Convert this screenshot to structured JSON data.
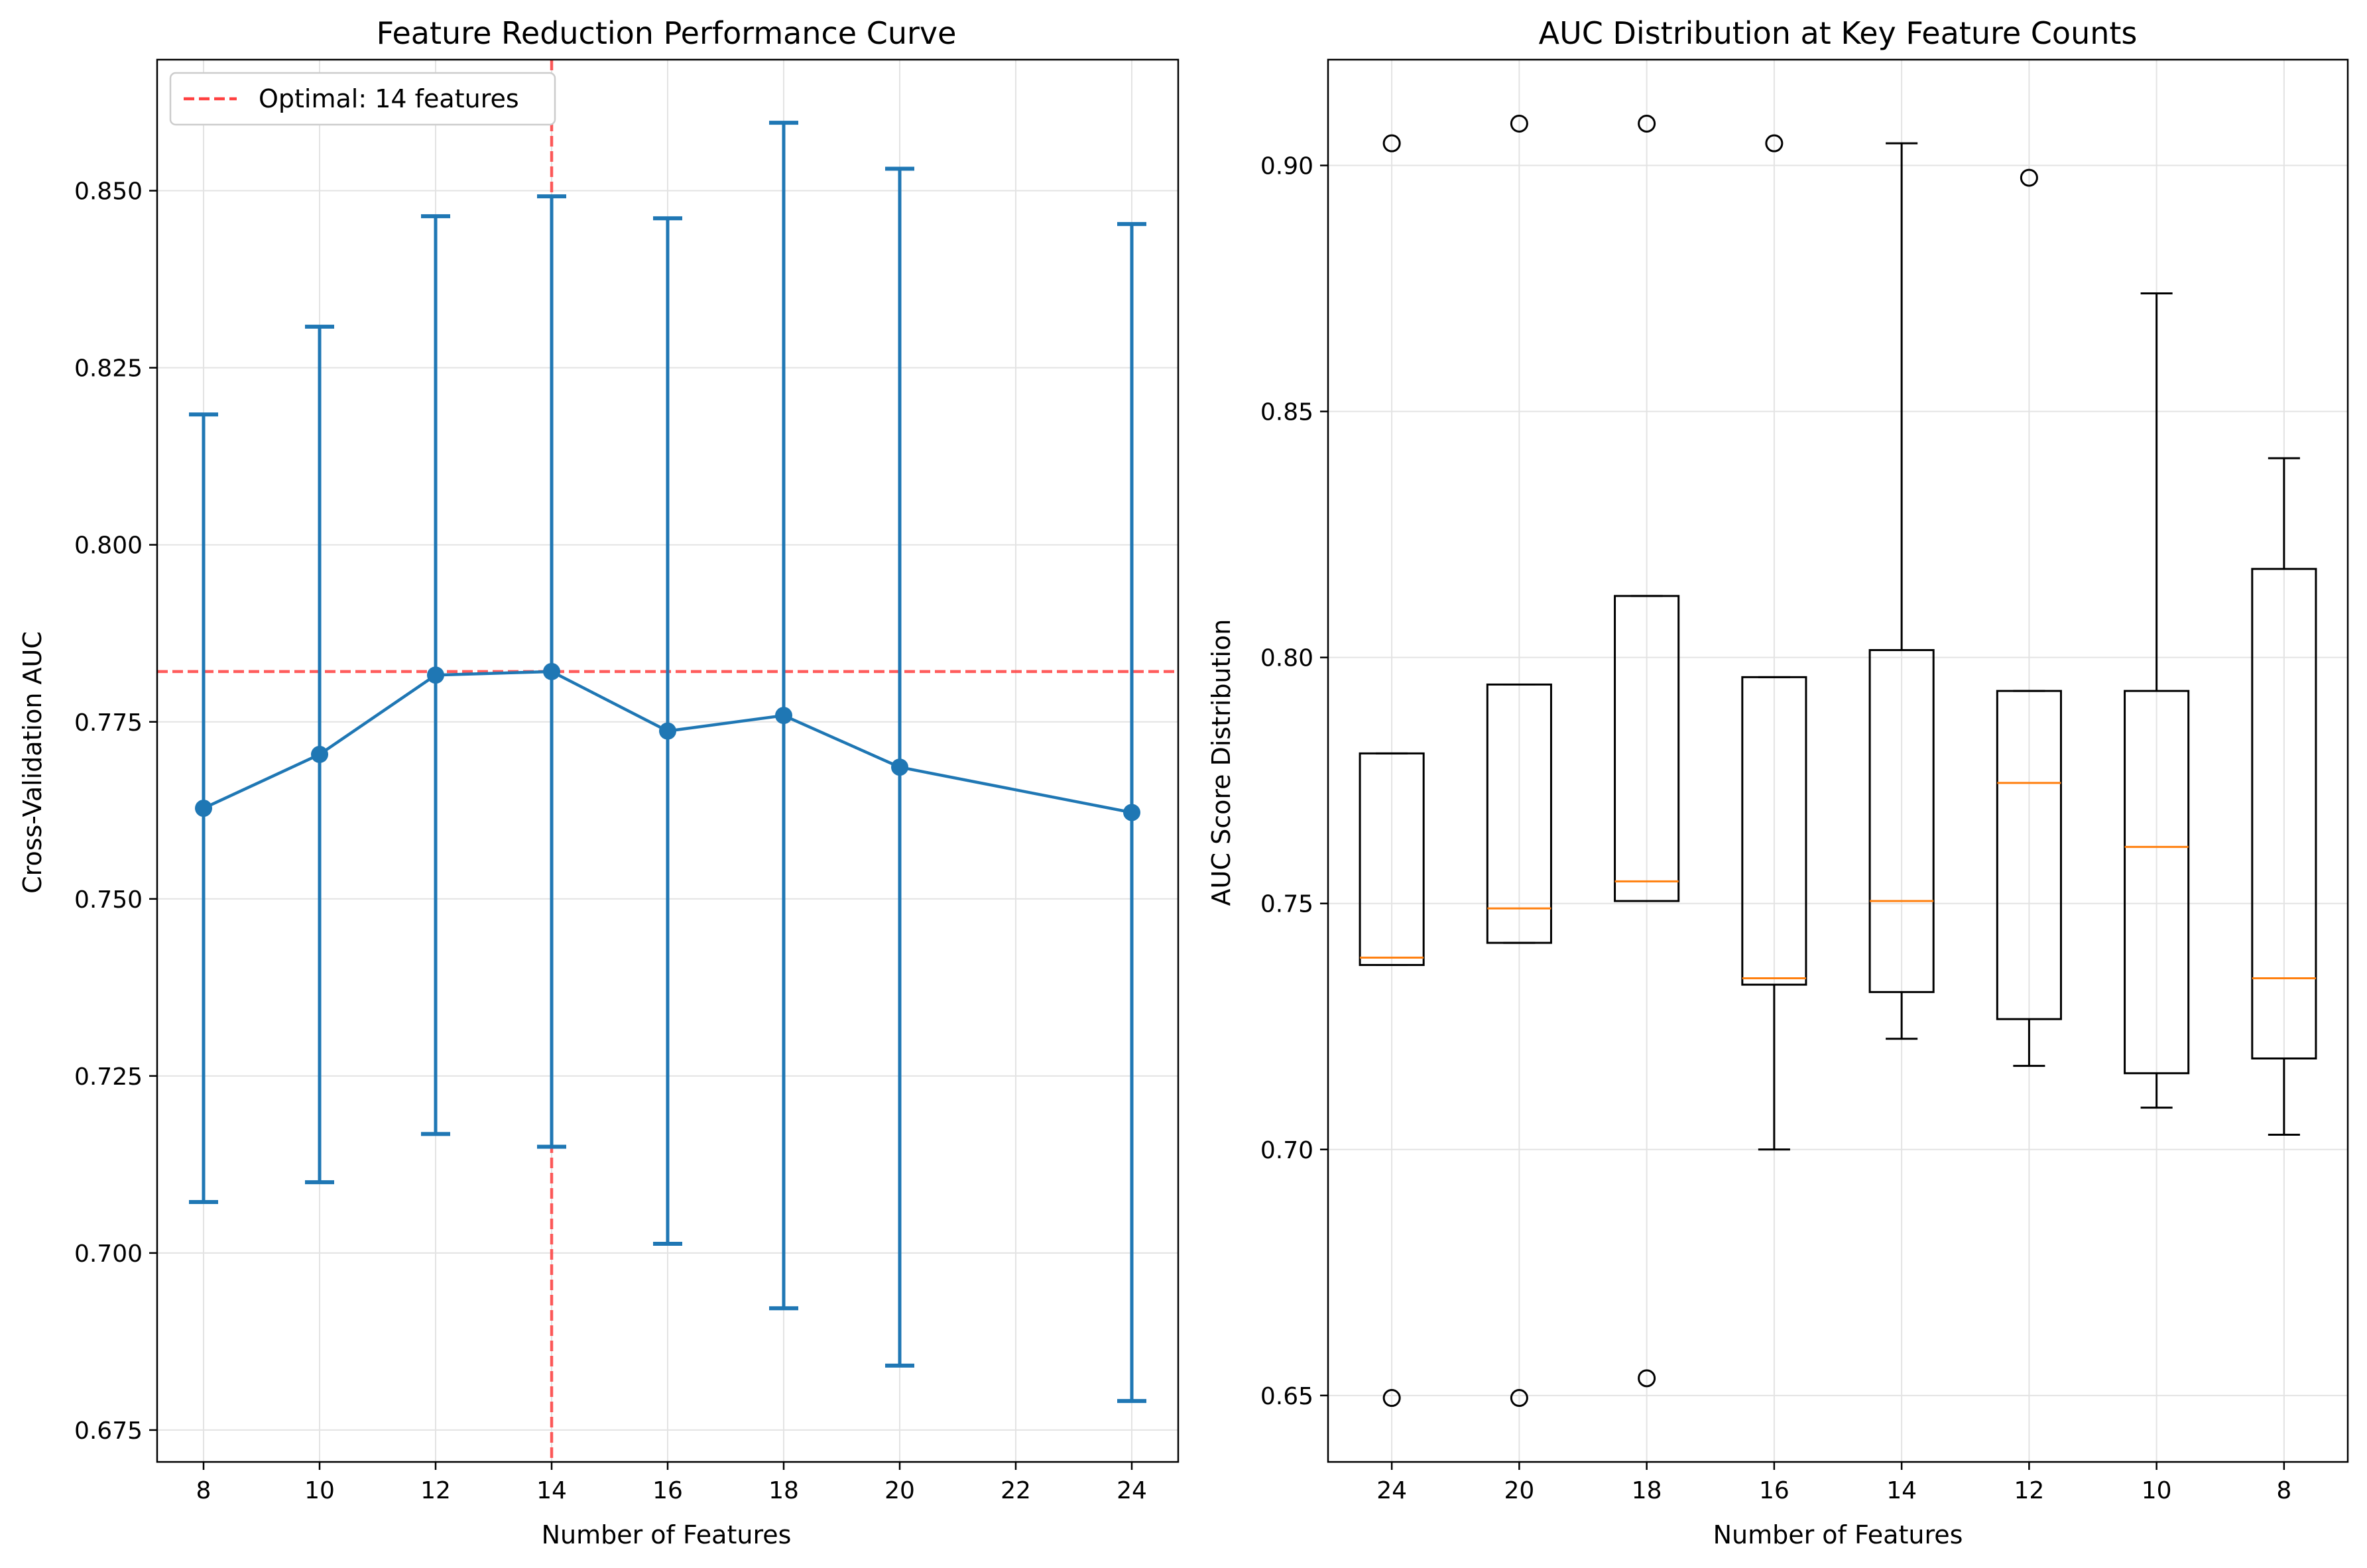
{
  "colors": {
    "line": "#1f77b4",
    "optimal": "#ff4040",
    "median": "#ff7f0e",
    "box": "#000000",
    "grid": "#e3e3e3"
  },
  "chart_data": [
    {
      "type": "line",
      "title": "Feature Reduction Performance Curve",
      "xlabel": "Number of Features",
      "ylabel": "Cross-Validation AUC",
      "xlim": [
        7.2,
        24.8
      ],
      "ylim": [
        0.6705,
        0.8685
      ],
      "xticks": [
        8,
        10,
        12,
        14,
        16,
        18,
        20,
        22,
        24
      ],
      "yticks": [
        0.675,
        0.7,
        0.725,
        0.75,
        0.775,
        0.8,
        0.825,
        0.85
      ],
      "grid": true,
      "legend_position": "top-left",
      "series": [
        {
          "x": [
            8,
            10,
            12,
            14,
            16,
            18,
            20,
            24
          ],
          "y": [
            0.7628,
            0.7704,
            0.7816,
            0.7821,
            0.7737,
            0.7759,
            0.7686,
            0.7622
          ],
          "error": [
            0.0556,
            0.0604,
            0.0648,
            0.0671,
            0.0724,
            0.0837,
            0.0845,
            0.0831
          ]
        }
      ],
      "reference_lines": {
        "legend_label": "Optimal: 14 features",
        "x": 14,
        "y": 0.7821
      }
    },
    {
      "type": "box",
      "title": "AUC Distribution at Key Feature Counts",
      "xlabel": "Number of Features",
      "ylabel": "AUC Score Distribution",
      "ylim": [
        0.6365,
        0.9215
      ],
      "yticks": [
        0.65,
        0.7,
        0.75,
        0.8,
        0.85,
        0.9
      ],
      "grid": true,
      "categories": [
        "24",
        "20",
        "18",
        "16",
        "14",
        "12",
        "10",
        "8"
      ],
      "boxes": [
        {
          "whislo": 0.7375,
          "q1": 0.7375,
          "med": 0.739,
          "q3": 0.7805,
          "whishi": 0.7805,
          "fliers": [
            0.9045,
            0.6495
          ]
        },
        {
          "whislo": 0.742,
          "q1": 0.742,
          "med": 0.749,
          "q3": 0.7945,
          "whishi": 0.7945,
          "fliers": [
            0.9085,
            0.6495
          ]
        },
        {
          "whislo": 0.7505,
          "q1": 0.7505,
          "med": 0.7545,
          "q3": 0.8125,
          "whishi": 0.8125,
          "fliers": [
            0.9085,
            0.6535
          ]
        },
        {
          "whislo": 0.7,
          "q1": 0.7335,
          "med": 0.7348,
          "q3": 0.796,
          "whishi": 0.796,
          "fliers": [
            0.9045
          ]
        },
        {
          "whislo": 0.7225,
          "q1": 0.732,
          "med": 0.7505,
          "q3": 0.8015,
          "whishi": 0.9045,
          "fliers": []
        },
        {
          "whislo": 0.717,
          "q1": 0.7265,
          "med": 0.7745,
          "q3": 0.7932,
          "whishi": 0.7932,
          "fliers": [
            0.8975
          ]
        },
        {
          "whislo": 0.7085,
          "q1": 0.7155,
          "med": 0.7615,
          "q3": 0.7932,
          "whishi": 0.874,
          "fliers": []
        },
        {
          "whislo": 0.703,
          "q1": 0.7185,
          "med": 0.7348,
          "q3": 0.818,
          "whishi": 0.8405,
          "fliers": []
        }
      ]
    }
  ]
}
